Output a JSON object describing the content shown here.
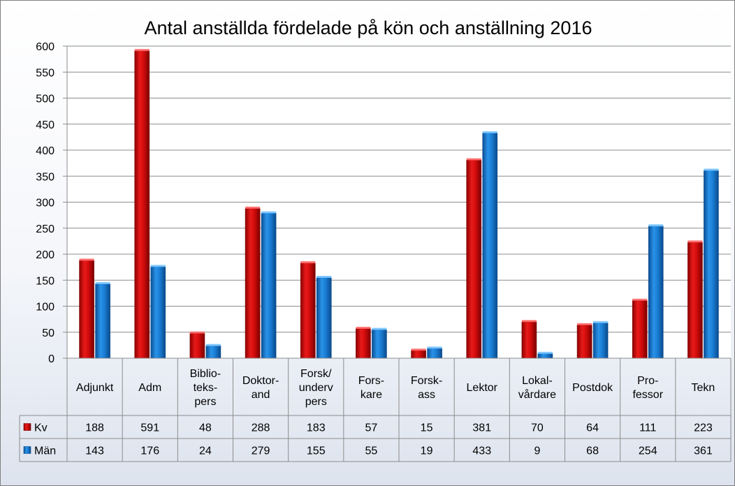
{
  "chart_data": {
    "type": "bar",
    "title": "Antal anställda fördelade på kön och anställning 2016",
    "xlabel": "",
    "ylabel": "",
    "ylim": [
      0,
      600
    ],
    "yticks": [
      0,
      50,
      100,
      150,
      200,
      250,
      300,
      350,
      400,
      450,
      500,
      550,
      600
    ],
    "grid": true,
    "legend": "data-table",
    "categories": [
      [
        "Adjunkt"
      ],
      [
        "Adm"
      ],
      [
        "Biblio-",
        "teks-",
        "pers"
      ],
      [
        "Doktor-",
        "and"
      ],
      [
        "Forsk/",
        "underv",
        "pers"
      ],
      [
        "Fors-",
        "kare"
      ],
      [
        "Forsk-",
        "ass"
      ],
      [
        "Lektor"
      ],
      [
        "Lokal-",
        "vårdare"
      ],
      [
        "Postdok"
      ],
      [
        "Pro-",
        "fessor"
      ],
      [
        "Tekn"
      ]
    ],
    "series": [
      {
        "name": "Kv",
        "color": "#e01010",
        "values": [
          188,
          591,
          48,
          288,
          183,
          57,
          15,
          381,
          70,
          64,
          111,
          223
        ]
      },
      {
        "name": "Män",
        "color": "#1a7fd6",
        "values": [
          143,
          176,
          24,
          279,
          155,
          55,
          19,
          433,
          9,
          68,
          254,
          361
        ]
      }
    ]
  }
}
